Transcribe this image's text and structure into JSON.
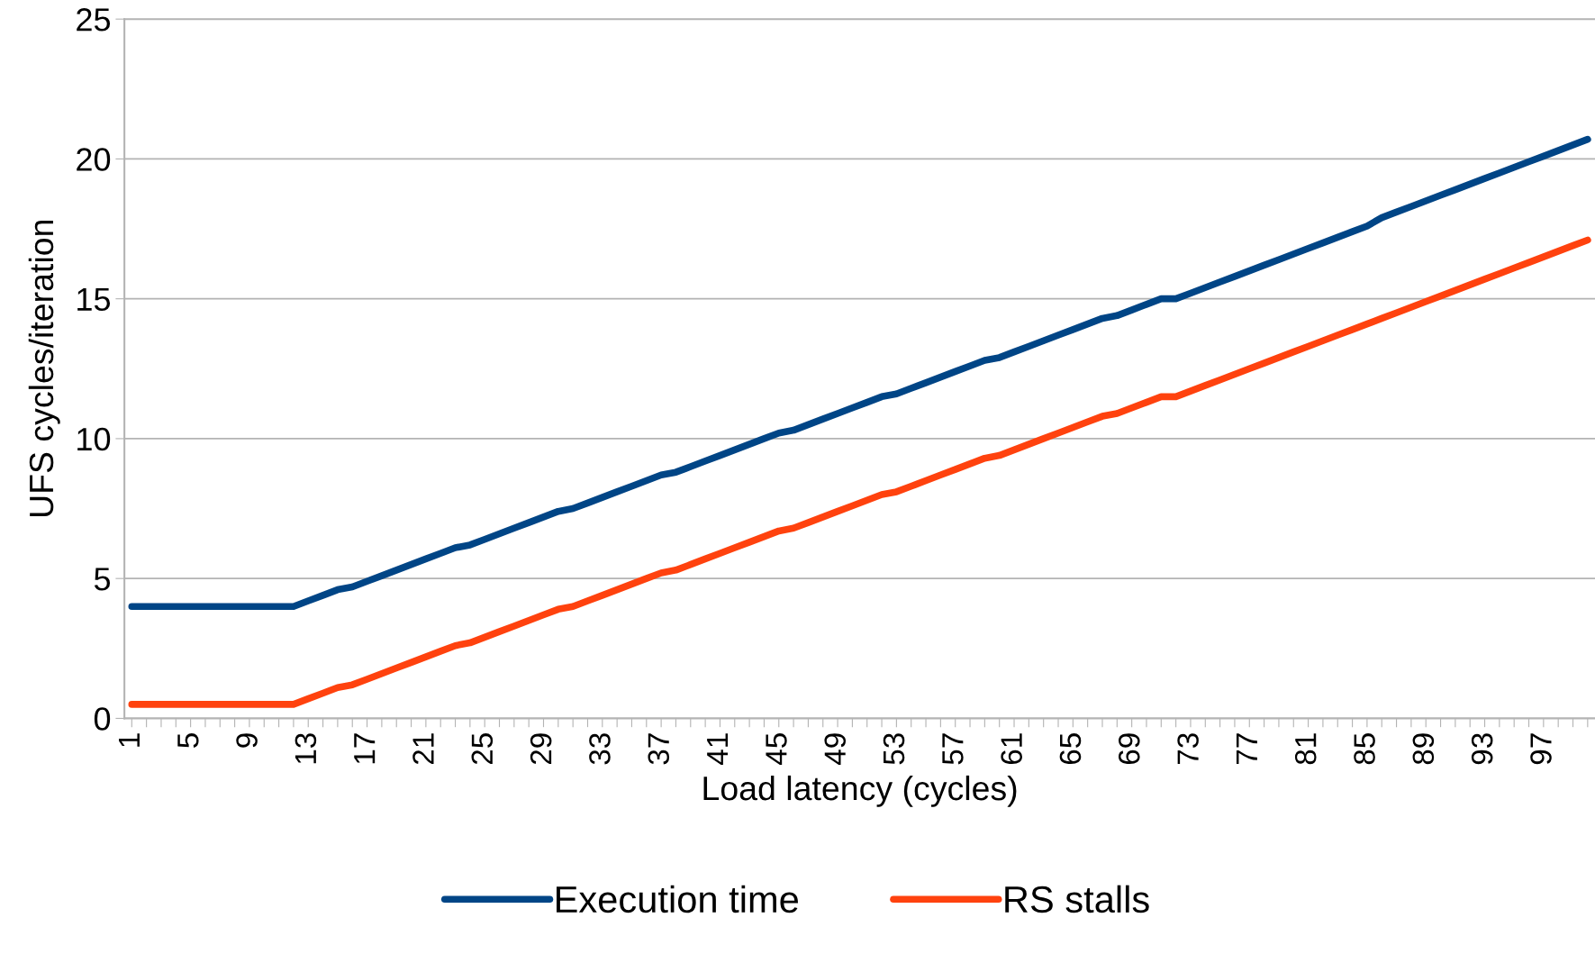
{
  "chart_data": {
    "type": "line",
    "xlabel": "Load latency (cycles)",
    "ylabel": "UFS cycles/iteration",
    "categories": [
      "1",
      null,
      null,
      null,
      "5",
      null,
      null,
      null,
      "9",
      null,
      null,
      null,
      "13",
      null,
      null,
      null,
      "17",
      null,
      null,
      null,
      "21",
      null,
      null,
      null,
      "25",
      null,
      null,
      null,
      "29",
      null,
      null,
      null,
      "33",
      null,
      null,
      null,
      "37",
      null,
      null,
      null,
      "41",
      null,
      null,
      null,
      "45",
      null,
      null,
      null,
      "49",
      null,
      null,
      null,
      "53",
      null,
      null,
      null,
      "57",
      null,
      null,
      null,
      "61",
      null,
      null,
      null,
      "65",
      null,
      null,
      null,
      "69",
      null,
      null,
      null,
      "73",
      null,
      null,
      null,
      "77",
      null,
      null,
      null,
      "81",
      null,
      null,
      null,
      "85",
      null,
      null,
      null,
      "89",
      null,
      null,
      null,
      "93",
      null,
      null,
      null,
      "97",
      null,
      null,
      null
    ],
    "series": [
      {
        "name": "Execution time",
        "color": "#004586",
        "values": [
          4.0,
          4.0,
          4.0,
          4.0,
          4.0,
          4.0,
          4.0,
          4.0,
          4.0,
          4.0,
          4.0,
          4.0,
          4.2,
          4.4,
          4.6,
          4.7,
          4.9,
          5.1,
          5.3,
          5.5,
          5.7,
          5.9,
          6.1,
          6.2,
          6.4,
          6.6,
          6.8,
          7.0,
          7.2,
          7.4,
          7.5,
          7.7,
          7.9,
          8.1,
          8.3,
          8.5,
          8.7,
          8.8,
          9.0,
          9.2,
          9.4,
          9.6,
          9.8,
          10.0,
          10.2,
          10.3,
          10.5,
          10.7,
          10.9,
          11.1,
          11.3,
          11.5,
          11.6,
          11.8,
          12.0,
          12.2,
          12.4,
          12.6,
          12.8,
          12.9,
          13.1,
          13.3,
          13.5,
          13.7,
          13.9,
          14.1,
          14.3,
          14.4,
          14.6,
          14.8,
          15.0,
          15.0,
          15.2,
          15.4,
          15.6,
          15.8,
          16.0,
          16.2,
          16.4,
          16.6,
          16.8,
          17.0,
          17.2,
          17.4,
          17.6,
          17.9,
          18.1,
          18.3,
          18.5,
          18.7,
          18.9,
          19.1,
          19.3,
          19.5,
          19.7,
          19.9,
          20.1,
          20.3,
          20.5,
          20.7
        ]
      },
      {
        "name": "RS stalls",
        "color": "#ff420e",
        "values": [
          0.5,
          0.5,
          0.5,
          0.5,
          0.5,
          0.5,
          0.5,
          0.5,
          0.5,
          0.5,
          0.5,
          0.5,
          0.7,
          0.9,
          1.1,
          1.2,
          1.4,
          1.6,
          1.8,
          2.0,
          2.2,
          2.4,
          2.6,
          2.7,
          2.9,
          3.1,
          3.3,
          3.5,
          3.7,
          3.9,
          4.0,
          4.2,
          4.4,
          4.6,
          4.8,
          5.0,
          5.2,
          5.3,
          5.5,
          5.7,
          5.9,
          6.1,
          6.3,
          6.5,
          6.7,
          6.8,
          7.0,
          7.2,
          7.4,
          7.6,
          7.8,
          8.0,
          8.1,
          8.3,
          8.5,
          8.7,
          8.9,
          9.1,
          9.3,
          9.4,
          9.6,
          9.8,
          10.0,
          10.2,
          10.4,
          10.6,
          10.8,
          10.9,
          11.1,
          11.3,
          11.5,
          11.5,
          11.7,
          11.9,
          12.1,
          12.3,
          12.5,
          12.7,
          12.9,
          13.1,
          13.3,
          13.5,
          13.7,
          13.9,
          14.1,
          14.3,
          14.5,
          14.7,
          14.9,
          15.1,
          15.3,
          15.5,
          15.7,
          15.9,
          16.1,
          16.3,
          16.5,
          16.7,
          16.9,
          17.1
        ]
      }
    ],
    "ylim": [
      0,
      25
    ],
    "yticks": [
      0,
      5,
      10,
      15,
      20,
      25
    ],
    "grid": "y",
    "legend": "bottom",
    "marker": "none",
    "line_style": "solid"
  }
}
